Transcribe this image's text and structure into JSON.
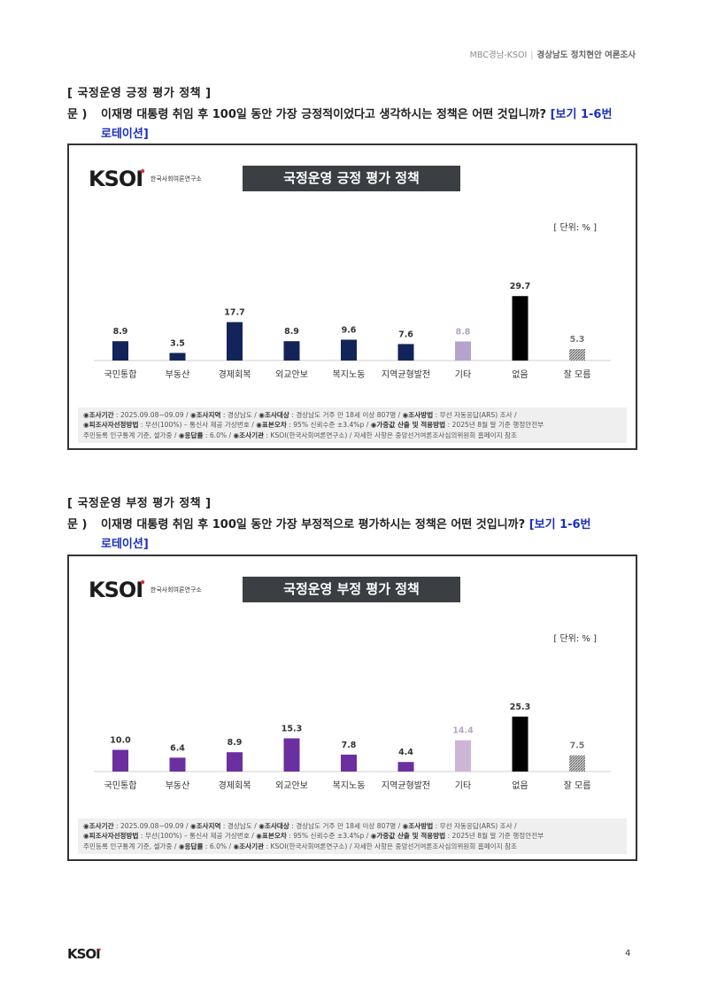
{
  "header": {
    "left": "MBC경남-KSOI",
    "right": "경상남도 정치현안 여론조사"
  },
  "sections": [
    {
      "section_title": "[ 국정운영 긍정 평가 정책 ]",
      "question_mark": "문 )",
      "question_text": "이재명 대통령 취임 후 100일 동안 가장 긍정적이었다고 생각하시는 정책은 어떤 것입니까?",
      "question_note_1": "[보기 1-6번",
      "question_note_2": "로테이션]",
      "logo_text": "KSOI",
      "logo_name": "한국사회여론연구소",
      "chart_title": "국정운영 긍정 평가 정책",
      "unit": "[ 단위: % ]",
      "footer_line1_a": "◉조사기간",
      "footer_line1_b": " : 2025.09.08~09.09 / ",
      "footer_line1_c": "◉조사지역",
      "footer_line1_d": " : 경상남도 / ",
      "footer_line1_e": "◉조사대상",
      "footer_line1_f": " : 경상남도 거주 만 18세 이상 807명 / ",
      "footer_line1_g": "◉조사방법",
      "footer_line1_h": " : 무선 자동응답(ARS) 조사 /",
      "footer_line2_a": "◉피조사자선정방법",
      "footer_line2_b": " : 무선(100%) – 통신사 제공 가상번호 / ",
      "footer_line2_c": "◉표본오차",
      "footer_line2_d": " : 95% 신뢰수준 ±3.4%p / ",
      "footer_line2_e": "◉가중값 산출 및 적용방법",
      "footer_line2_f": " : 2025년 8월 말 기준 행정안전부",
      "footer_line3_a": "주민등록 인구통계 기준, 셀가중 / ",
      "footer_line3_b": "◉응답률",
      "footer_line3_c": " : 6.0% / ",
      "footer_line3_d": "◉조사기관",
      "footer_line3_e": " : KSOI(한국사회여론연구소) / 자세한 사항은 중앙선거여론조사심의위원회 홈페이지 참조"
    },
    {
      "section_title": "[ 국정운영 부정 평가 정책 ]",
      "question_mark": "문 )",
      "question_text": "이재명 대통령 취임 후 100일 동안 가장 부정적으로 평가하시는 정책은 어떤 것입니까?",
      "question_note_1": "[보기 1-6번",
      "question_note_2": "로테이션]",
      "logo_text": "KSOI",
      "logo_name": "한국사회여론연구소",
      "chart_title": "국정운영 부정 평가 정책",
      "unit": "[ 단위: % ]",
      "footer_line1_a": "◉조사기간",
      "footer_line1_b": " : 2025.09.08~09.09 / ",
      "footer_line1_c": "◉조사지역",
      "footer_line1_d": " : 경상남도 / ",
      "footer_line1_e": "◉조사대상",
      "footer_line1_f": " : 경상남도 거주 만 18세 이상 807명 / ",
      "footer_line1_g": "◉조사방법",
      "footer_line1_h": " : 무선 자동응답(ARS) 조사 /",
      "footer_line2_a": "◉피조사자선정방법",
      "footer_line2_b": " : 무선(100%) – 통신사 제공 가상번호 / ",
      "footer_line2_c": "◉표본오차",
      "footer_line2_d": " : 95% 신뢰수준 ±3.4%p / ",
      "footer_line2_e": "◉가중값 산출 및 적용방법",
      "footer_line2_f": " : 2025년 8월 말 기준 행정안전부",
      "footer_line3_a": "주민등록 인구통계 기준, 셀가중 / ",
      "footer_line3_b": "◉응답률",
      "footer_line3_c": " : 6.0% / ",
      "footer_line3_d": "◉조사기관",
      "footer_line3_e": " : KSOI(한국사회여론연구소) / 자세한 사항은 중앙선거여론조사심의위원회 홈페이지 참조"
    }
  ],
  "chart_data": [
    {
      "type": "bar",
      "title": "국정운영 긍정 평가 정책",
      "unit": "%",
      "categories": [
        "국민통합",
        "부동산",
        "경제회복",
        "외교안보",
        "복지노동",
        "지역균형발전",
        "기타",
        "없음",
        "잘 모름"
      ],
      "values": [
        8.9,
        3.5,
        17.7,
        8.9,
        9.6,
        7.6,
        8.8,
        29.7,
        5.3
      ],
      "colors": [
        "#13245a",
        "#13245a",
        "#13245a",
        "#13245a",
        "#13245a",
        "#13245a",
        "#b5a3cc",
        "#000000",
        "hatch"
      ],
      "label_colors": [
        "#333333",
        "#333333",
        "#333333",
        "#333333",
        "#333333",
        "#333333",
        "#b5a3cc",
        "#333333",
        "#777777"
      ],
      "ylim": [
        0,
        32
      ]
    },
    {
      "type": "bar",
      "title": "국정운영 부정 평가 정책",
      "unit": "%",
      "categories": [
        "국민통합",
        "부동산",
        "경제회복",
        "외교안보",
        "복지노동",
        "지역균형발전",
        "기타",
        "없음",
        "잘 모름"
      ],
      "values": [
        10.0,
        6.4,
        8.9,
        15.3,
        7.8,
        4.4,
        14.4,
        25.3,
        7.5
      ],
      "colors": [
        "#6b2fa0",
        "#6b2fa0",
        "#6b2fa0",
        "#6b2fa0",
        "#6b2fa0",
        "#6b2fa0",
        "#cbb6d6",
        "#000000",
        "hatch"
      ],
      "label_colors": [
        "#333333",
        "#333333",
        "#333333",
        "#333333",
        "#333333",
        "#333333",
        "#b9a6c6",
        "#333333",
        "#777777"
      ],
      "ylim": [
        0,
        32
      ]
    }
  ],
  "page": {
    "number": "4",
    "logo": "KSOI"
  }
}
